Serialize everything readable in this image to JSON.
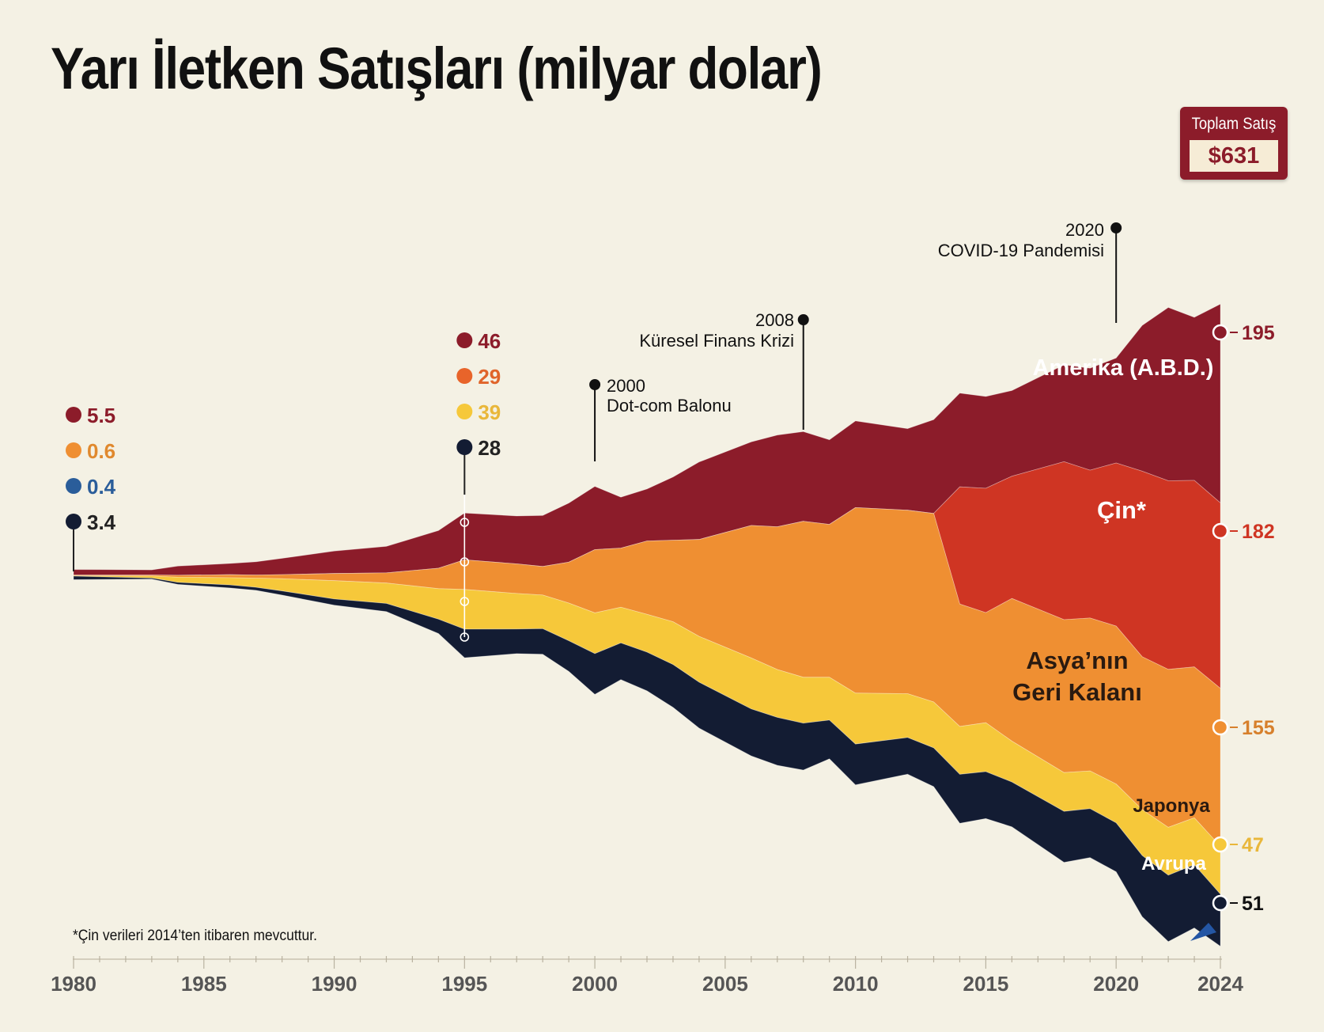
{
  "title": "Yarı İletken Satışları (milyar dolar)",
  "total": {
    "label": "Toplam Satış",
    "value": "$631"
  },
  "footnote": "*Çin verileri 2014’ten itibaren mevcuttur.",
  "colors": {
    "background": "#f4f1e4",
    "Amerika": "#8c1c2a",
    "Cin": "#cf3523",
    "Asya": "#ef8f32",
    "Japonya": "#f6c83a",
    "Avrupa": "#131c33",
    "accent": "#2456a4"
  },
  "chart_data": {
    "type": "area",
    "subtype": "streamgraph",
    "title": "Yarı İletken Satışları (milyar dolar)",
    "x": [
      1980,
      1983,
      1984,
      1986,
      1987,
      1988,
      1990,
      1992,
      1994,
      1995,
      1997,
      1998,
      1999,
      2000,
      2001,
      2002,
      2003,
      2004,
      2006,
      2007,
      2008,
      2009,
      2010,
      2012,
      2013,
      2014,
      2015,
      2016,
      2018,
      2019,
      2020,
      2021,
      2022,
      2023,
      2024
    ],
    "series": [
      {
        "name": "Amerika (A.B.D.)",
        "values": [
          5.5,
          5,
          9,
          11,
          13,
          16,
          22,
          26,
          37,
          46,
          47,
          50,
          58,
          62,
          50,
          51,
          62,
          76,
          82,
          90,
          88,
          83,
          85,
          80,
          92,
          92,
          90,
          84,
          95,
          100,
          103,
          143,
          170,
          160,
          195
        ],
        "end_label": "195"
      },
      {
        "name": "Çin*",
        "values": [
          0,
          0,
          0,
          0,
          0,
          0,
          0,
          0,
          0,
          0,
          0,
          0,
          0,
          0,
          0,
          0,
          0,
          0,
          0,
          0,
          0,
          0,
          0,
          0,
          0,
          115,
          122,
          120,
          155,
          145,
          160,
          182,
          185,
          183,
          182
        ],
        "end_label": "182"
      },
      {
        "name": "Asya’nın Geri Kalanı",
        "values": [
          0.6,
          1,
          2,
          3,
          3,
          4,
          7,
          10,
          20,
          29,
          29,
          28,
          40,
          62,
          58,
          72,
          80,
          95,
          130,
          140,
          153,
          150,
          182,
          180,
          185,
          120,
          108,
          140,
          150,
          150,
          155,
          150,
          155,
          148,
          155
        ],
        "end_label": "155"
      },
      {
        "name": "Japonya",
        "values": [
          0.4,
          2,
          5,
          7,
          9,
          12,
          18,
          20,
          30,
          39,
          35,
          33,
          37,
          40,
          35,
          37,
          42,
          45,
          50,
          47,
          45,
          42,
          50,
          43,
          45,
          47,
          48,
          40,
          38,
          37,
          38,
          45,
          47,
          46,
          47
        ],
        "end_label": "47"
      },
      {
        "name": "Avrupa",
        "values": [
          3.4,
          1,
          2,
          3,
          3,
          4,
          6,
          8,
          14,
          28,
          24,
          25,
          30,
          40,
          36,
          38,
          42,
          45,
          46,
          47,
          46,
          38,
          40,
          36,
          38,
          48,
          46,
          44,
          50,
          48,
          48,
          60,
          65,
          62,
          51
        ],
        "end_label": "51"
      }
    ],
    "series_labels": [
      "Amerika (A.B.D.)",
      "Çin*",
      "Asya’nın\nGeri Kalanı",
      "Japonya",
      "Avrupa"
    ],
    "callouts": [
      {
        "year": 1980,
        "values": [
          "5.5",
          "0.6",
          "0.4",
          "3.4"
        ],
        "series": [
          "Amerika (A.B.D.)",
          "Asya’nın Geri Kalanı",
          "Japonya",
          "Avrupa"
        ]
      },
      {
        "year": 1995,
        "values": [
          "46",
          "29",
          "39",
          "28"
        ],
        "series": [
          "Amerika (A.B.D.)",
          "Asya’nın Geri Kalanı",
          "Japonya",
          "Avrupa"
        ]
      }
    ],
    "annotations": [
      {
        "year": 2000,
        "line1": "2000",
        "line2": "Dot-com Balonu"
      },
      {
        "year": 2008,
        "line1": "2008",
        "line2": "Küresel Finans Krizi"
      },
      {
        "year": 2020,
        "line1": "2020",
        "line2": "COVID-19 Pandemisi"
      }
    ],
    "xlabel": "",
    "ylabel": "",
    "x_ticks": [
      1980,
      1985,
      1990,
      1995,
      2000,
      2005,
      2010,
      2015,
      2020,
      2024
    ],
    "xlim": [
      1980,
      2024
    ],
    "grid": false,
    "legend": "inline"
  }
}
